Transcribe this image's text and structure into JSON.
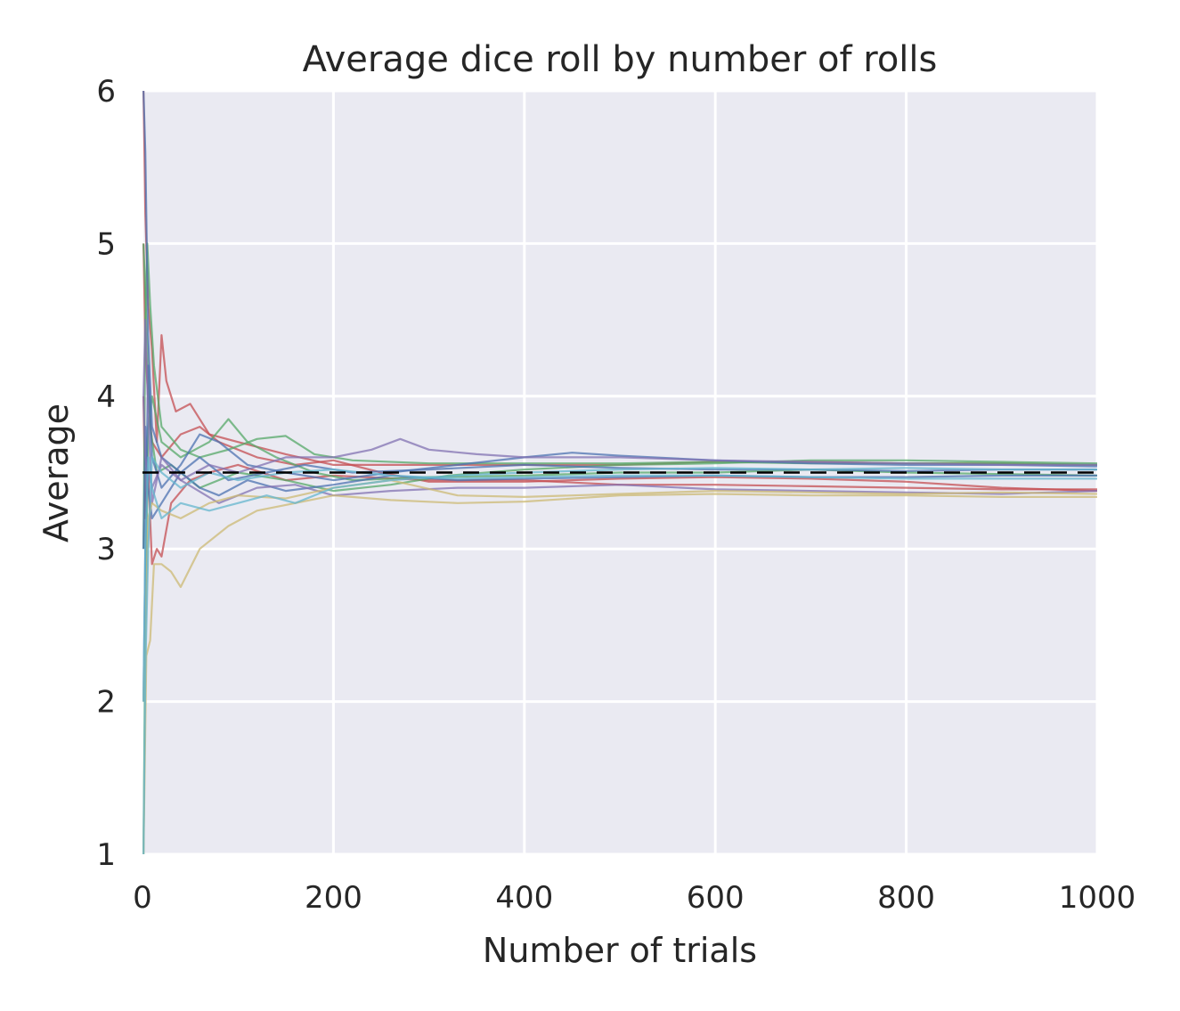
{
  "chart_data": {
    "type": "line",
    "title": "Average dice roll by number of rolls",
    "xlabel": "Number of trials",
    "ylabel": "Average",
    "xlim": [
      0,
      1000
    ],
    "ylim": [
      1,
      6
    ],
    "xticks": [
      0,
      200,
      400,
      600,
      800,
      1000
    ],
    "yticks": [
      1,
      2,
      3,
      4,
      5,
      6
    ],
    "x_tick_labels": [
      "0",
      "200",
      "400",
      "600",
      "800",
      "1000"
    ],
    "y_tick_labels": [
      "1",
      "2",
      "3",
      "4",
      "5",
      "6"
    ],
    "grid": true,
    "legend": "none",
    "reference_line": {
      "y": 3.5,
      "style": "dashed",
      "color": "#000000"
    },
    "background_color": "#eaeaf2",
    "grid_color": "#ffffff",
    "series_colors": [
      "#4c72b0",
      "#55a868",
      "#c44e52",
      "#8172b2",
      "#ccb974",
      "#64b5cd"
    ],
    "series": [
      {
        "color": "#c44e52",
        "points": [
          [
            1,
            6
          ],
          [
            3,
            5.2
          ],
          [
            6,
            4.6
          ],
          [
            10,
            4.3
          ],
          [
            15,
            3.7
          ],
          [
            20,
            4.4
          ],
          [
            25,
            4.1
          ],
          [
            35,
            3.9
          ],
          [
            50,
            3.95
          ],
          [
            70,
            3.75
          ],
          [
            100,
            3.7
          ],
          [
            150,
            3.62
          ],
          [
            200,
            3.55
          ],
          [
            300,
            3.55
          ],
          [
            400,
            3.55
          ],
          [
            500,
            3.55
          ],
          [
            600,
            3.57
          ],
          [
            700,
            3.57
          ],
          [
            800,
            3.56
          ],
          [
            900,
            3.56
          ],
          [
            1000,
            3.55
          ]
        ]
      },
      {
        "color": "#c44e52",
        "points": [
          [
            1,
            4
          ],
          [
            3,
            3.2
          ],
          [
            6,
            3.5
          ],
          [
            10,
            2.9
          ],
          [
            15,
            3.0
          ],
          [
            20,
            2.95
          ],
          [
            30,
            3.3
          ],
          [
            50,
            3.45
          ],
          [
            70,
            3.5
          ],
          [
            100,
            3.55
          ],
          [
            150,
            3.45
          ],
          [
            200,
            3.48
          ],
          [
            300,
            3.45
          ],
          [
            400,
            3.45
          ],
          [
            500,
            3.42
          ],
          [
            600,
            3.42
          ],
          [
            700,
            3.41
          ],
          [
            800,
            3.4
          ],
          [
            900,
            3.39
          ],
          [
            1000,
            3.39
          ]
        ]
      },
      {
        "color": "#c44e52",
        "points": [
          [
            1,
            5
          ],
          [
            3,
            4.3
          ],
          [
            6,
            4.0
          ],
          [
            10,
            3.7
          ],
          [
            20,
            3.6
          ],
          [
            40,
            3.75
          ],
          [
            60,
            3.8
          ],
          [
            80,
            3.7
          ],
          [
            120,
            3.6
          ],
          [
            160,
            3.55
          ],
          [
            200,
            3.58
          ],
          [
            250,
            3.5
          ],
          [
            300,
            3.44
          ],
          [
            400,
            3.44
          ],
          [
            500,
            3.46
          ],
          [
            600,
            3.47
          ],
          [
            700,
            3.46
          ],
          [
            800,
            3.44
          ],
          [
            900,
            3.4
          ],
          [
            1000,
            3.38
          ]
        ]
      },
      {
        "color": "#55a868",
        "points": [
          [
            1,
            3
          ],
          [
            3,
            4.5
          ],
          [
            5,
            5.0
          ],
          [
            8,
            4.6
          ],
          [
            12,
            4.2
          ],
          [
            20,
            3.8
          ],
          [
            40,
            3.65
          ],
          [
            60,
            3.6
          ],
          [
            90,
            3.65
          ],
          [
            120,
            3.72
          ],
          [
            150,
            3.74
          ],
          [
            180,
            3.62
          ],
          [
            220,
            3.58
          ],
          [
            300,
            3.56
          ],
          [
            400,
            3.56
          ],
          [
            500,
            3.56
          ],
          [
            600,
            3.57
          ],
          [
            700,
            3.56
          ],
          [
            800,
            3.56
          ],
          [
            900,
            3.56
          ],
          [
            1000,
            3.55
          ]
        ]
      },
      {
        "color": "#55a868",
        "points": [
          [
            1,
            1
          ],
          [
            3,
            2.5
          ],
          [
            6,
            3.8
          ],
          [
            10,
            4.0
          ],
          [
            20,
            3.7
          ],
          [
            40,
            3.6
          ],
          [
            70,
            3.7
          ],
          [
            90,
            3.85
          ],
          [
            110,
            3.7
          ],
          [
            140,
            3.6
          ],
          [
            180,
            3.5
          ],
          [
            220,
            3.45
          ],
          [
            300,
            3.47
          ],
          [
            400,
            3.48
          ],
          [
            500,
            3.5
          ],
          [
            600,
            3.5
          ],
          [
            700,
            3.52
          ],
          [
            800,
            3.5
          ],
          [
            900,
            3.49
          ],
          [
            1000,
            3.48
          ]
        ]
      },
      {
        "color": "#55a868",
        "points": [
          [
            1,
            5
          ],
          [
            4,
            4.5
          ],
          [
            8,
            3.8
          ],
          [
            15,
            3.5
          ],
          [
            30,
            3.55
          ],
          [
            60,
            3.4
          ],
          [
            100,
            3.5
          ],
          [
            150,
            3.45
          ],
          [
            200,
            3.38
          ],
          [
            260,
            3.42
          ],
          [
            320,
            3.48
          ],
          [
            400,
            3.52
          ],
          [
            500,
            3.55
          ],
          [
            600,
            3.56
          ],
          [
            700,
            3.58
          ],
          [
            800,
            3.58
          ],
          [
            900,
            3.57
          ],
          [
            1000,
            3.56
          ]
        ]
      },
      {
        "color": "#4c72b0",
        "points": [
          [
            1,
            2
          ],
          [
            3,
            3.0
          ],
          [
            6,
            4.2
          ],
          [
            10,
            3.6
          ],
          [
            20,
            3.4
          ],
          [
            40,
            3.55
          ],
          [
            60,
            3.75
          ],
          [
            80,
            3.7
          ],
          [
            110,
            3.55
          ],
          [
            150,
            3.5
          ],
          [
            200,
            3.45
          ],
          [
            260,
            3.5
          ],
          [
            330,
            3.55
          ],
          [
            400,
            3.6
          ],
          [
            450,
            3.63
          ],
          [
            500,
            3.61
          ],
          [
            600,
            3.58
          ],
          [
            700,
            3.56
          ],
          [
            800,
            3.55
          ],
          [
            900,
            3.55
          ],
          [
            1000,
            3.54
          ]
        ]
      },
      {
        "color": "#4c72b0",
        "points": [
          [
            1,
            3
          ],
          [
            3,
            3.8
          ],
          [
            6,
            3.4
          ],
          [
            10,
            3.2
          ],
          [
            20,
            3.3
          ],
          [
            40,
            3.5
          ],
          [
            60,
            3.4
          ],
          [
            80,
            3.35
          ],
          [
            110,
            3.45
          ],
          [
            150,
            3.38
          ],
          [
            200,
            3.42
          ],
          [
            260,
            3.48
          ],
          [
            330,
            3.45
          ],
          [
            400,
            3.46
          ],
          [
            500,
            3.47
          ],
          [
            600,
            3.48
          ],
          [
            700,
            3.47
          ],
          [
            800,
            3.47
          ],
          [
            900,
            3.48
          ],
          [
            1000,
            3.48
          ]
        ]
      },
      {
        "color": "#4c72b0",
        "points": [
          [
            1,
            6
          ],
          [
            3,
            5.6
          ],
          [
            6,
            4.4
          ],
          [
            10,
            3.8
          ],
          [
            20,
            3.6
          ],
          [
            40,
            3.5
          ],
          [
            60,
            3.6
          ],
          [
            90,
            3.45
          ],
          [
            130,
            3.5
          ],
          [
            170,
            3.55
          ],
          [
            220,
            3.5
          ],
          [
            300,
            3.52
          ],
          [
            400,
            3.55
          ],
          [
            500,
            3.53
          ],
          [
            600,
            3.52
          ],
          [
            700,
            3.52
          ],
          [
            800,
            3.51
          ],
          [
            900,
            3.52
          ],
          [
            1000,
            3.52
          ]
        ]
      },
      {
        "color": "#8172b2",
        "points": [
          [
            1,
            4
          ],
          [
            3,
            4.5
          ],
          [
            6,
            3.9
          ],
          [
            10,
            3.3
          ],
          [
            20,
            3.6
          ],
          [
            40,
            3.45
          ],
          [
            70,
            3.55
          ],
          [
            100,
            3.5
          ],
          [
            150,
            3.6
          ],
          [
            200,
            3.6
          ],
          [
            240,
            3.65
          ],
          [
            270,
            3.72
          ],
          [
            300,
            3.65
          ],
          [
            350,
            3.62
          ],
          [
            400,
            3.6
          ],
          [
            500,
            3.6
          ],
          [
            600,
            3.58
          ],
          [
            700,
            3.57
          ],
          [
            800,
            3.56
          ],
          [
            900,
            3.55
          ],
          [
            1000,
            3.55
          ]
        ]
      },
      {
        "color": "#8172b2",
        "points": [
          [
            1,
            4
          ],
          [
            3,
            3.6
          ],
          [
            6,
            3.5
          ],
          [
            10,
            3.4
          ],
          [
            20,
            3.55
          ],
          [
            40,
            3.45
          ],
          [
            80,
            3.3
          ],
          [
            120,
            3.4
          ],
          [
            160,
            3.42
          ],
          [
            200,
            3.35
          ],
          [
            260,
            3.38
          ],
          [
            330,
            3.4
          ],
          [
            400,
            3.4
          ],
          [
            500,
            3.42
          ],
          [
            600,
            3.39
          ],
          [
            700,
            3.38
          ],
          [
            800,
            3.37
          ],
          [
            900,
            3.36
          ],
          [
            1000,
            3.38
          ]
        ]
      },
      {
        "color": "#ccb974",
        "points": [
          [
            1,
            1
          ],
          [
            2,
            1.4
          ],
          [
            4,
            2.3
          ],
          [
            8,
            2.4
          ],
          [
            12,
            2.9
          ],
          [
            20,
            2.9
          ],
          [
            30,
            2.85
          ],
          [
            40,
            2.75
          ],
          [
            60,
            3.0
          ],
          [
            90,
            3.15
          ],
          [
            120,
            3.25
          ],
          [
            160,
            3.3
          ],
          [
            200,
            3.35
          ],
          [
            260,
            3.32
          ],
          [
            330,
            3.3
          ],
          [
            400,
            3.31
          ],
          [
            500,
            3.35
          ],
          [
            600,
            3.36
          ],
          [
            700,
            3.35
          ],
          [
            800,
            3.35
          ],
          [
            900,
            3.34
          ],
          [
            1000,
            3.34
          ]
        ]
      },
      {
        "color": "#ccb974",
        "points": [
          [
            1,
            2
          ],
          [
            3,
            2.4
          ],
          [
            6,
            3.2
          ],
          [
            10,
            3.3
          ],
          [
            20,
            3.25
          ],
          [
            40,
            3.2
          ],
          [
            70,
            3.3
          ],
          [
            100,
            3.35
          ],
          [
            150,
            3.33
          ],
          [
            200,
            3.4
          ],
          [
            260,
            3.45
          ],
          [
            330,
            3.35
          ],
          [
            400,
            3.34
          ],
          [
            500,
            3.36
          ],
          [
            600,
            3.38
          ],
          [
            700,
            3.37
          ],
          [
            800,
            3.36
          ],
          [
            900,
            3.37
          ],
          [
            1000,
            3.36
          ]
        ]
      },
      {
        "color": "#64b5cd",
        "points": [
          [
            1,
            2
          ],
          [
            3,
            3.0
          ],
          [
            6,
            3.6
          ],
          [
            10,
            3.4
          ],
          [
            20,
            3.2
          ],
          [
            40,
            3.3
          ],
          [
            70,
            3.25
          ],
          [
            100,
            3.3
          ],
          [
            130,
            3.35
          ],
          [
            160,
            3.3
          ],
          [
            200,
            3.4
          ],
          [
            260,
            3.45
          ],
          [
            330,
            3.48
          ],
          [
            400,
            3.5
          ],
          [
            500,
            3.52
          ],
          [
            600,
            3.53
          ],
          [
            700,
            3.52
          ],
          [
            800,
            3.53
          ],
          [
            900,
            3.52
          ],
          [
            1000,
            3.52
          ]
        ]
      },
      {
        "color": "#64b5cd",
        "points": [
          [
            1,
            1
          ],
          [
            3,
            2.2
          ],
          [
            6,
            3.0
          ],
          [
            10,
            3.6
          ],
          [
            20,
            3.5
          ],
          [
            40,
            3.4
          ],
          [
            70,
            3.5
          ],
          [
            100,
            3.45
          ],
          [
            150,
            3.5
          ],
          [
            200,
            3.52
          ],
          [
            260,
            3.48
          ],
          [
            330,
            3.46
          ],
          [
            400,
            3.47
          ],
          [
            500,
            3.48
          ],
          [
            600,
            3.48
          ],
          [
            700,
            3.47
          ],
          [
            800,
            3.46
          ],
          [
            900,
            3.46
          ],
          [
            1000,
            3.46
          ]
        ]
      }
    ]
  }
}
